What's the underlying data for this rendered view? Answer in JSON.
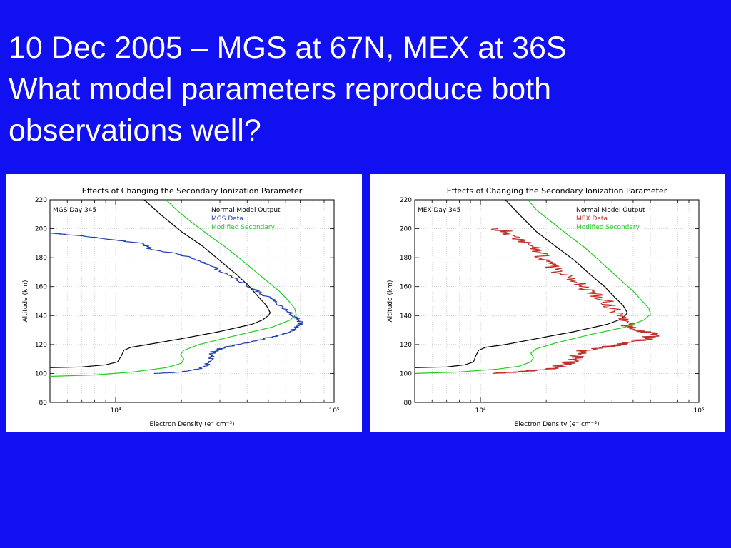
{
  "slide": {
    "title_lines": [
      "10 Dec 2005 – MGS at 67N, MEX at 36S",
      "What model parameters reproduce both",
      "observations well?"
    ]
  },
  "colors": {
    "background": "#1010f0",
    "normal_model": "#000000",
    "mgs_data": "#1f3fb0",
    "mex_data": "#c0302a",
    "modified_secondary": "#22cc22"
  },
  "chart_data": [
    {
      "type": "line",
      "title": "Effects of Changing the Secondary Ionization Parameter",
      "annotation": "MGS Day 345",
      "xlabel": "Electron Density (e⁻ cm⁻³)",
      "ylabel": "Altitude (km)",
      "xscale": "log",
      "xlim": [
        5000,
        100000
      ],
      "ylim": [
        80,
        220
      ],
      "xticklabels": [
        "10⁴",
        "10⁵"
      ],
      "yticks": [
        80,
        100,
        120,
        140,
        160,
        180,
        200,
        220
      ],
      "grid": true,
      "legend_position": "top-right",
      "series": [
        {
          "name": "Normal Model Output",
          "color": "#000000",
          "points": [
            [
              5000,
              104
            ],
            [
              7000,
              104.5
            ],
            [
              9000,
              106
            ],
            [
              10200,
              108
            ],
            [
              10600,
              112
            ],
            [
              10900,
              116
            ],
            [
              11700,
              118
            ],
            [
              14000,
              120
            ],
            [
              20000,
              124
            ],
            [
              30000,
              129
            ],
            [
              42000,
              134
            ],
            [
              47000,
              137
            ],
            [
              50000,
              140
            ],
            [
              51000,
              142
            ],
            [
              49000,
              147
            ],
            [
              45000,
              153
            ],
            [
              41000,
              160
            ],
            [
              36000,
              168
            ],
            [
              30000,
              178
            ],
            [
              25000,
              188
            ],
            [
              20000,
              198
            ],
            [
              16000,
              210
            ],
            [
              13500,
              220
            ]
          ]
        },
        {
          "name": "MGS Data",
          "color": "#1f3fb0",
          "wiggle": 0.015,
          "points": [
            [
              15500,
              100
            ],
            [
              20000,
              101
            ],
            [
              24000,
              103
            ],
            [
              26000,
              105
            ],
            [
              27000,
              109
            ],
            [
              27500,
              112
            ],
            [
              28000,
              115
            ],
            [
              30000,
              117
            ],
            [
              36000,
              120
            ],
            [
              45000,
              123
            ],
            [
              58000,
              127
            ],
            [
              65000,
              130
            ],
            [
              69000,
              133
            ],
            [
              69500,
              136
            ],
            [
              67000,
              139
            ],
            [
              62000,
              143
            ],
            [
              55000,
              149
            ],
            [
              47000,
              155
            ],
            [
              40000,
              161
            ],
            [
              33000,
              168
            ],
            [
              26000,
              176
            ],
            [
              20000,
              182
            ],
            [
              14500,
              186
            ],
            [
              13000,
              190
            ],
            [
              9000,
              193
            ],
            [
              6000,
              196
            ],
            [
              5000,
              197
            ]
          ]
        },
        {
          "name": "Modified Secondary",
          "color": "#22cc22",
          "points": [
            [
              5000,
              98
            ],
            [
              8000,
              99
            ],
            [
              12000,
              101
            ],
            [
              17000,
              104
            ],
            [
              20000,
              107
            ],
            [
              20500,
              110
            ],
            [
              19800,
              113
            ],
            [
              20500,
              116
            ],
            [
              24000,
              120
            ],
            [
              35000,
              126
            ],
            [
              52000,
              132
            ],
            [
              63000,
              137
            ],
            [
              67000,
              141
            ],
            [
              66000,
              145
            ],
            [
              62000,
              150
            ],
            [
              56000,
              157
            ],
            [
              50000,
              163
            ],
            [
              44000,
              170
            ],
            [
              38000,
              178
            ],
            [
              32000,
              187
            ],
            [
              27000,
              195
            ],
            [
              22000,
              205
            ],
            [
              19000,
              213
            ],
            [
              17000,
              220
            ]
          ]
        }
      ]
    },
    {
      "type": "line",
      "title": "Effects of Changing the Secondary Ionization Parameter",
      "annotation": "MEX Day 345",
      "xlabel": "Electron Density (e⁻ cm⁻³)",
      "ylabel": "Altitude (km)",
      "xscale": "log",
      "xlim": [
        5000,
        100000
      ],
      "ylim": [
        80,
        220
      ],
      "xticklabels": [
        "10⁴",
        "10⁵"
      ],
      "yticks": [
        80,
        100,
        120,
        140,
        160,
        180,
        200,
        220
      ],
      "grid": true,
      "legend_position": "top-right",
      "series": [
        {
          "name": "Normal Model Output",
          "color": "#000000",
          "points": [
            [
              5000,
              104
            ],
            [
              7000,
              104.5
            ],
            [
              8500,
              106
            ],
            [
              9300,
              108
            ],
            [
              9500,
              112
            ],
            [
              9800,
              116
            ],
            [
              10500,
              118
            ],
            [
              13000,
              120
            ],
            [
              18000,
              124
            ],
            [
              27000,
              129
            ],
            [
              38000,
              134
            ],
            [
              43000,
              137
            ],
            [
              46000,
              140
            ],
            [
              47000,
              142
            ],
            [
              45000,
              147
            ],
            [
              41000,
              153
            ],
            [
              37000,
              160
            ],
            [
              32000,
              168
            ],
            [
              27000,
              178
            ],
            [
              22000,
              188
            ],
            [
              18000,
              198
            ],
            [
              15000,
              210
            ],
            [
              13000,
              220
            ]
          ]
        },
        {
          "name": "MEX Data",
          "color": "#c0302a",
          "wiggle": 0.04,
          "points": [
            [
              12000,
              100
            ],
            [
              14000,
              101
            ],
            [
              18000,
              102
            ],
            [
              22000,
              104
            ],
            [
              25000,
              107
            ],
            [
              27000,
              110
            ],
            [
              28000,
              114
            ],
            [
              30000,
              116
            ],
            [
              40000,
              119
            ],
            [
              52000,
              122
            ],
            [
              60000,
              125
            ],
            [
              62000,
              127
            ],
            [
              55000,
              129
            ],
            [
              48000,
              133
            ],
            [
              44000,
              138
            ],
            [
              41000,
              145
            ],
            [
              36000,
              152
            ],
            [
              30000,
              159
            ],
            [
              26000,
              165
            ],
            [
              22000,
              172
            ],
            [
              20000,
              179
            ],
            [
              18000,
              185
            ],
            [
              16000,
              191
            ],
            [
              14000,
              196
            ],
            [
              12000,
              200
            ]
          ]
        },
        {
          "name": "Modified Secondary",
          "color": "#22cc22",
          "points": [
            [
              5000,
              100
            ],
            [
              8000,
              101
            ],
            [
              12000,
              103
            ],
            [
              15000,
              105
            ],
            [
              17000,
              108
            ],
            [
              17500,
              111
            ],
            [
              17000,
              114
            ],
            [
              18000,
              117
            ],
            [
              22000,
              121
            ],
            [
              32000,
              127
            ],
            [
              46000,
              132
            ],
            [
              56000,
              137
            ],
            [
              60000,
              141
            ],
            [
              59000,
              145
            ],
            [
              55000,
              150
            ],
            [
              50000,
              157
            ],
            [
              45000,
              163
            ],
            [
              40000,
              170
            ],
            [
              35000,
              178
            ],
            [
              30000,
              187
            ],
            [
              25000,
              196
            ],
            [
              21000,
              205
            ],
            [
              18000,
              213
            ],
            [
              16500,
              220
            ]
          ]
        }
      ]
    }
  ]
}
